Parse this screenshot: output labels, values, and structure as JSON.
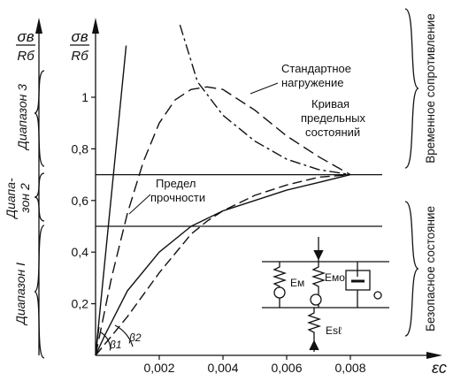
{
  "left_axis": {
    "label_num": "σв",
    "label_den": "Rб"
  },
  "y_axis": {
    "label_num": "σв",
    "label_den": "Rб",
    "ticks": [
      {
        "v": 0.2,
        "label": "0,2"
      },
      {
        "v": 0.4,
        "label": "0,4"
      },
      {
        "v": 0.6,
        "label": "0,6"
      },
      {
        "v": 0.8,
        "label": "0,8"
      },
      {
        "v": 1.0,
        "label": "1"
      }
    ]
  },
  "x_axis": {
    "label": "εc",
    "ticks": [
      {
        "v": 0.002,
        "label": "0,002"
      },
      {
        "v": 0.004,
        "label": "0,004"
      },
      {
        "v": 0.006,
        "label": "0,006"
      },
      {
        "v": 0.008,
        "label": "0,008"
      }
    ]
  },
  "ranges": {
    "r1": "Диапазон I",
    "r2_line1": "Диапа-",
    "r2_line2": "зон 2",
    "r3": "Диапазон 3"
  },
  "right_brackets": {
    "top": "Временное сопротивление",
    "bottom": "Безопасное состояние"
  },
  "curve_labels": {
    "standard_line1": "Стандартное",
    "standard_line2": "нагружение",
    "limit_line1": "Кривая",
    "limit_line2": "предельных",
    "limit_line3": "состояний",
    "strength_line1": "Предел",
    "strength_line2": "прочности"
  },
  "angle_labels": {
    "b1": "β1",
    "b2": "β2"
  },
  "rheo_model": {
    "em": "Eм",
    "emo": "Eмо",
    "esl": "Esℓ"
  },
  "chart_data": {
    "type": "line",
    "xlabel": "εc",
    "ylabel": "σв/Rб",
    "xlim": [
      0,
      0.009
    ],
    "ylim": [
      0,
      1.2
    ],
    "horizontal_lines": [
      0.5,
      0.7
    ],
    "series": [
      {
        "x": [
          0,
          0.00096
        ],
        "y": [
          0,
          1.2
        ]
      },
      {
        "x": [
          0,
          0.0003,
          0.001,
          0.002,
          0.003,
          0.004,
          0.005,
          0.006,
          0.007,
          0.008
        ],
        "y": [
          0,
          0.08,
          0.25,
          0.4,
          0.5,
          0.56,
          0.6,
          0.64,
          0.67,
          0.7
        ]
      },
      {
        "x": [
          0,
          0.0005,
          0.001,
          0.0015,
          0.002,
          0.0025,
          0.003,
          0.0035,
          0.004,
          0.005,
          0.006,
          0.007,
          0.008
        ],
        "y": [
          0,
          0.3,
          0.55,
          0.75,
          0.9,
          0.99,
          1.03,
          1.04,
          1.03,
          0.95,
          0.85,
          0.77,
          0.7
        ]
      },
      {
        "x": [
          0,
          0.001,
          0.002,
          0.003,
          0.0035,
          0.004,
          0.005,
          0.006,
          0.007,
          0.008
        ],
        "y": [
          0,
          0.15,
          0.32,
          0.47,
          0.52,
          0.56,
          0.62,
          0.66,
          0.69,
          0.7
        ]
      },
      {
        "x": [
          0.00265,
          0.0032,
          0.004,
          0.005,
          0.006,
          0.007,
          0.008
        ],
        "y": [
          1.28,
          1.06,
          0.93,
          0.83,
          0.76,
          0.72,
          0.7
        ]
      }
    ]
  }
}
